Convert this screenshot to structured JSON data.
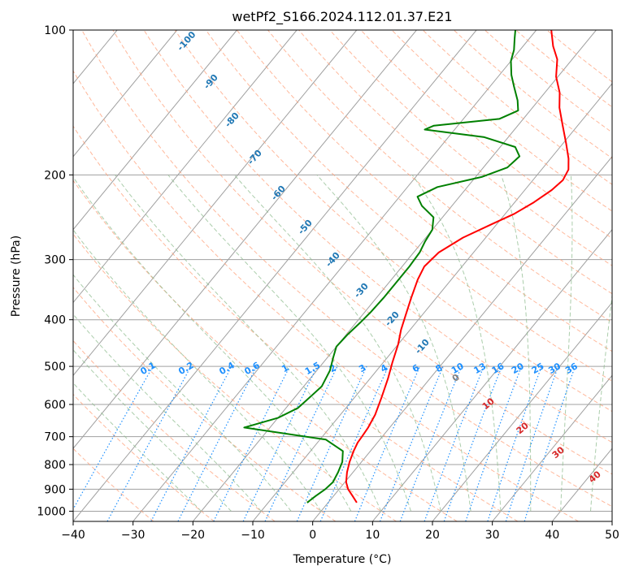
{
  "chart_data": {
    "type": "line",
    "title": "wetPf2_S166.2024.112.01.37.E21",
    "xlabel": "Temperature (°C)",
    "ylabel": "Pressure (hPa)",
    "xlim": [
      -40,
      50
    ],
    "ylim": [
      1050,
      100
    ],
    "y_scale": "log",
    "grid": true,
    "x_ticks": [
      -40,
      -30,
      -20,
      -10,
      0,
      10,
      20,
      30,
      40,
      50
    ],
    "y_ticks": [
      100,
      200,
      300,
      400,
      500,
      600,
      700,
      800,
      900,
      1000
    ],
    "series": [
      {
        "color": "#ff0000",
        "points": [
          [
            4.8,
            960
          ],
          [
            3.2,
            930
          ],
          [
            1.5,
            900
          ],
          [
            0.2,
            870
          ],
          [
            -1.0,
            830
          ],
          [
            -2.0,
            790
          ],
          [
            -2.8,
            750
          ],
          [
            -3.3,
            720
          ],
          [
            -3.4,
            700
          ],
          [
            -3.6,
            670
          ],
          [
            -4.2,
            630
          ],
          [
            -5.5,
            580
          ],
          [
            -7.0,
            530
          ],
          [
            -8.5,
            490
          ],
          [
            -10.0,
            450
          ],
          [
            -11.5,
            420
          ],
          [
            -12.8,
            390
          ],
          [
            -14.2,
            360
          ],
          [
            -15.6,
            330
          ],
          [
            -16.3,
            310
          ],
          [
            -15.8,
            290
          ],
          [
            -13.8,
            270
          ],
          [
            -10.8,
            253
          ],
          [
            -8.5,
            241
          ],
          [
            -6.8,
            228
          ],
          [
            -5.5,
            215
          ],
          [
            -5.0,
            205
          ],
          [
            -5.5,
            195
          ],
          [
            -7.0,
            185
          ],
          [
            -9.5,
            172
          ],
          [
            -12.5,
            158
          ],
          [
            -15.5,
            145
          ],
          [
            -17.5,
            135
          ],
          [
            -20.3,
            125
          ],
          [
            -22.5,
            115
          ],
          [
            -25.0,
            108
          ],
          [
            -27.5,
            100
          ]
        ]
      },
      {
        "color": "#008000",
        "points": [
          [
            -3.5,
            960
          ],
          [
            -3.0,
            930
          ],
          [
            -2.3,
            900
          ],
          [
            -2.0,
            870
          ],
          [
            -2.5,
            830
          ],
          [
            -3.2,
            790
          ],
          [
            -4.6,
            750
          ],
          [
            -9.0,
            710
          ],
          [
            -24.3,
            670
          ],
          [
            -20.0,
            640
          ],
          [
            -18.0,
            610
          ],
          [
            -17.5,
            580
          ],
          [
            -17.0,
            550
          ],
          [
            -17.8,
            510
          ],
          [
            -19.0,
            480
          ],
          [
            -20.0,
            455
          ],
          [
            -19.8,
            430
          ],
          [
            -19.3,
            405
          ],
          [
            -19.0,
            385
          ],
          [
            -18.8,
            360
          ],
          [
            -18.8,
            335
          ],
          [
            -18.8,
            310
          ],
          [
            -19.0,
            290
          ],
          [
            -19.6,
            275
          ],
          [
            -20.0,
            260
          ],
          [
            -21.5,
            245
          ],
          [
            -25.0,
            232
          ],
          [
            -27.0,
            222
          ],
          [
            -25.0,
            212
          ],
          [
            -19.0,
            202
          ],
          [
            -16.0,
            193
          ],
          [
            -15.5,
            183
          ],
          [
            -17.5,
            175
          ],
          [
            -24.0,
            167
          ],
          [
            -35.0,
            161
          ],
          [
            -34.0,
            158
          ],
          [
            -24.0,
            153
          ],
          [
            -22.0,
            147
          ],
          [
            -23.5,
            140
          ],
          [
            -26.0,
            131
          ],
          [
            -28.0,
            124
          ],
          [
            -30.0,
            116
          ],
          [
            -31.0,
            110
          ],
          [
            -32.5,
            104
          ],
          [
            -33.5,
            100
          ]
        ]
      }
    ],
    "dry_adiabat_labels": [
      "-100",
      "-90",
      "-80",
      "-70",
      "-60",
      "-50",
      "-40",
      "-30",
      "-20",
      "-10"
    ],
    "moist_adiabat_labels": [
      "10",
      "20",
      "30",
      "40"
    ],
    "zero_label": "0",
    "mixing_ratio_labels": [
      "0.1",
      "0.2",
      "0.4",
      "0.6",
      "1",
      "1.5",
      "2",
      "3",
      "4",
      "6",
      "8",
      "10",
      "13",
      "16",
      "20",
      "25",
      "30",
      "36"
    ],
    "colors": {
      "temperature": "#ff0000",
      "dewpoint": "#008000",
      "isotherm": "#a0a0a0",
      "dry_adiabat": "#ffa07a",
      "moist_adiabat": "#8fbc8f",
      "mixing_ratio": "#1e90ff"
    }
  }
}
